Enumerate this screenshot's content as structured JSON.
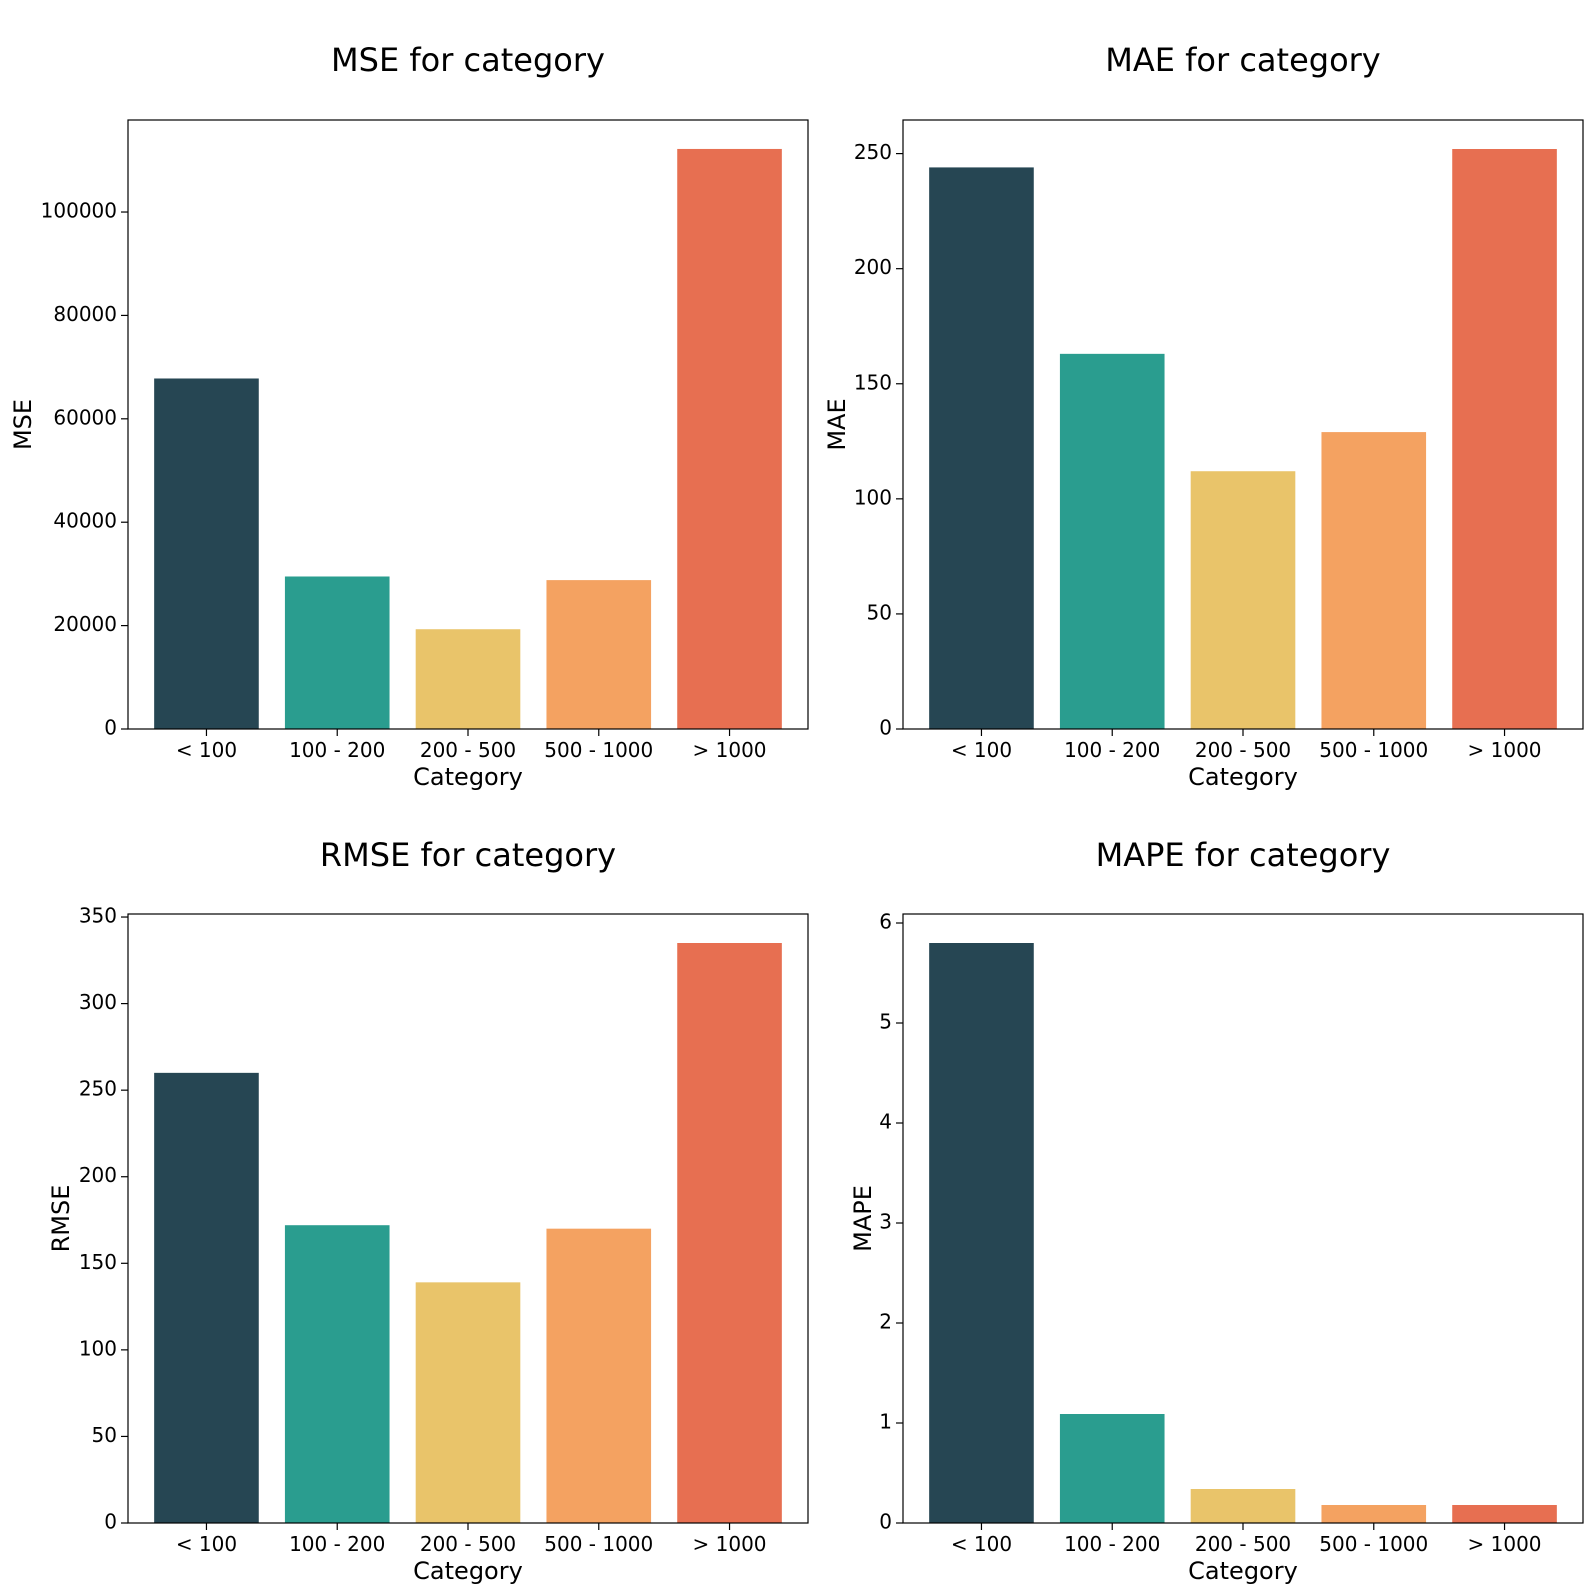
{
  "colors": [
    "#264653",
    "#2a9d8f",
    "#e9c46a",
    "#f4a261",
    "#e76f51"
  ],
  "chart_data": [
    {
      "type": "bar",
      "title": "MSE for category",
      "xlabel": "Category",
      "ylabel": "MSE",
      "categories": [
        "< 100",
        "100 - 200",
        "200 - 500",
        "500 - 1000",
        "> 1000"
      ],
      "values": [
        67800,
        29500,
        19300,
        28800,
        112200
      ],
      "ylim": [
        0,
        117800
      ],
      "yticks": [
        0,
        20000,
        40000,
        60000,
        80000,
        100000
      ]
    },
    {
      "type": "bar",
      "title": "MAE for category",
      "xlabel": "Category",
      "ylabel": "MAE",
      "categories": [
        "< 100",
        "100 - 200",
        "200 - 500",
        "500 - 1000",
        "> 1000"
      ],
      "values": [
        244,
        163,
        112,
        129,
        252
      ],
      "ylim": [
        0,
        264.6
      ],
      "yticks": [
        0,
        50,
        100,
        150,
        200,
        250
      ]
    },
    {
      "type": "bar",
      "title": "RMSE for category",
      "xlabel": "Category",
      "ylabel": "RMSE",
      "categories": [
        "< 100",
        "100 - 200",
        "200 - 500",
        "500 - 1000",
        "> 1000"
      ],
      "values": [
        260,
        172,
        139,
        170,
        335
      ],
      "ylim": [
        0,
        351.75
      ],
      "yticks": [
        0,
        50,
        100,
        150,
        200,
        250,
        300,
        350
      ]
    },
    {
      "type": "bar",
      "title": "MAPE for category",
      "xlabel": "Category",
      "ylabel": "MAPE",
      "categories": [
        "< 100",
        "100 - 200",
        "200 - 500",
        "500 - 1000",
        "> 1000"
      ],
      "values": [
        5.8,
        1.09,
        0.34,
        0.18,
        0.18
      ],
      "ylim": [
        0,
        6.09
      ],
      "yticks": [
        0,
        1,
        2,
        3,
        4,
        5,
        6
      ]
    }
  ]
}
